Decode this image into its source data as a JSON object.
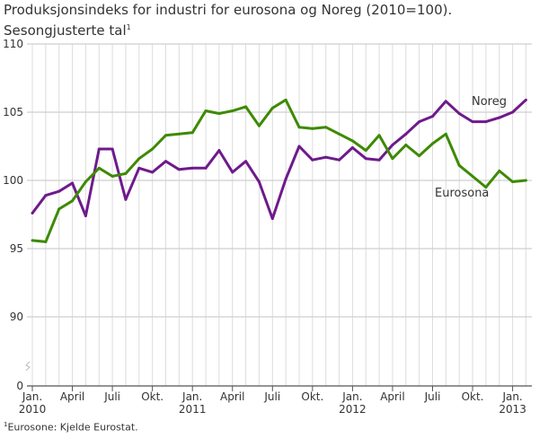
{
  "chart_data": {
    "type": "line",
    "title": "Produksjonsindeks for industri for eurosona og Noreg (2010=100).",
    "subtitle": "Sesongjusterte tal",
    "subtitle_sup": "1",
    "footnote_sup": "1",
    "footnote": "Eurosone: Kjelde Eurostat.",
    "y_ticks": [
      0,
      90,
      95,
      100,
      105,
      110
    ],
    "ylim": [
      0,
      110
    ],
    "y_axis_break": [
      0,
      90
    ],
    "x_range": [
      "2010-01",
      "2013-02"
    ],
    "x_tick_labels": [
      {
        "month": "2010-01",
        "line1": "Jan.",
        "line2": "2010"
      },
      {
        "month": "2010-04",
        "line1": "April",
        "line2": ""
      },
      {
        "month": "2010-07",
        "line1": "Juli",
        "line2": ""
      },
      {
        "month": "2010-10",
        "line1": "Okt.",
        "line2": ""
      },
      {
        "month": "2011-01",
        "line1": "Jan.",
        "line2": "2011"
      },
      {
        "month": "2011-04",
        "line1": "April",
        "line2": ""
      },
      {
        "month": "2011-07",
        "line1": "Juli",
        "line2": ""
      },
      {
        "month": "2011-10",
        "line1": "Okt.",
        "line2": ""
      },
      {
        "month": "2012-01",
        "line1": "Jan.",
        "line2": "2012"
      },
      {
        "month": "2012-04",
        "line1": "April",
        "line2": ""
      },
      {
        "month": "2012-07",
        "line1": "Juli",
        "line2": ""
      },
      {
        "month": "2012-10",
        "line1": "Okt.",
        "line2": ""
      },
      {
        "month": "2013-01",
        "line1": "Jan.",
        "line2": "2013"
      }
    ],
    "grid": true,
    "legend": "inline labels",
    "series": [
      {
        "name": "Noreg",
        "color": "#6e1a8c",
        "values": [
          97.6,
          98.9,
          99.2,
          99.8,
          97.4,
          102.3,
          102.3,
          98.6,
          100.9,
          100.6,
          101.4,
          100.8,
          100.9,
          100.9,
          102.2,
          100.6,
          101.4,
          99.9,
          97.2,
          100.1,
          102.5,
          101.5,
          101.7,
          101.5,
          102.4,
          101.6,
          101.5,
          102.6,
          103.4,
          104.3,
          104.7,
          105.8,
          104.9,
          104.3,
          104.3,
          104.6,
          105.0,
          105.9
        ]
      },
      {
        "name": "Eurosona",
        "color": "#3d8a00",
        "values": [
          95.6,
          95.5,
          97.9,
          98.5,
          99.9,
          100.9,
          100.3,
          100.5,
          101.6,
          102.3,
          103.3,
          103.4,
          103.5,
          105.1,
          104.9,
          105.1,
          105.4,
          104.0,
          105.3,
          105.9,
          103.9,
          103.8,
          103.9,
          103.4,
          102.9,
          102.2,
          103.3,
          101.6,
          102.6,
          101.8,
          102.7,
          103.4,
          101.1,
          100.3,
          99.5,
          100.7,
          99.9,
          100.0
        ]
      }
    ]
  }
}
